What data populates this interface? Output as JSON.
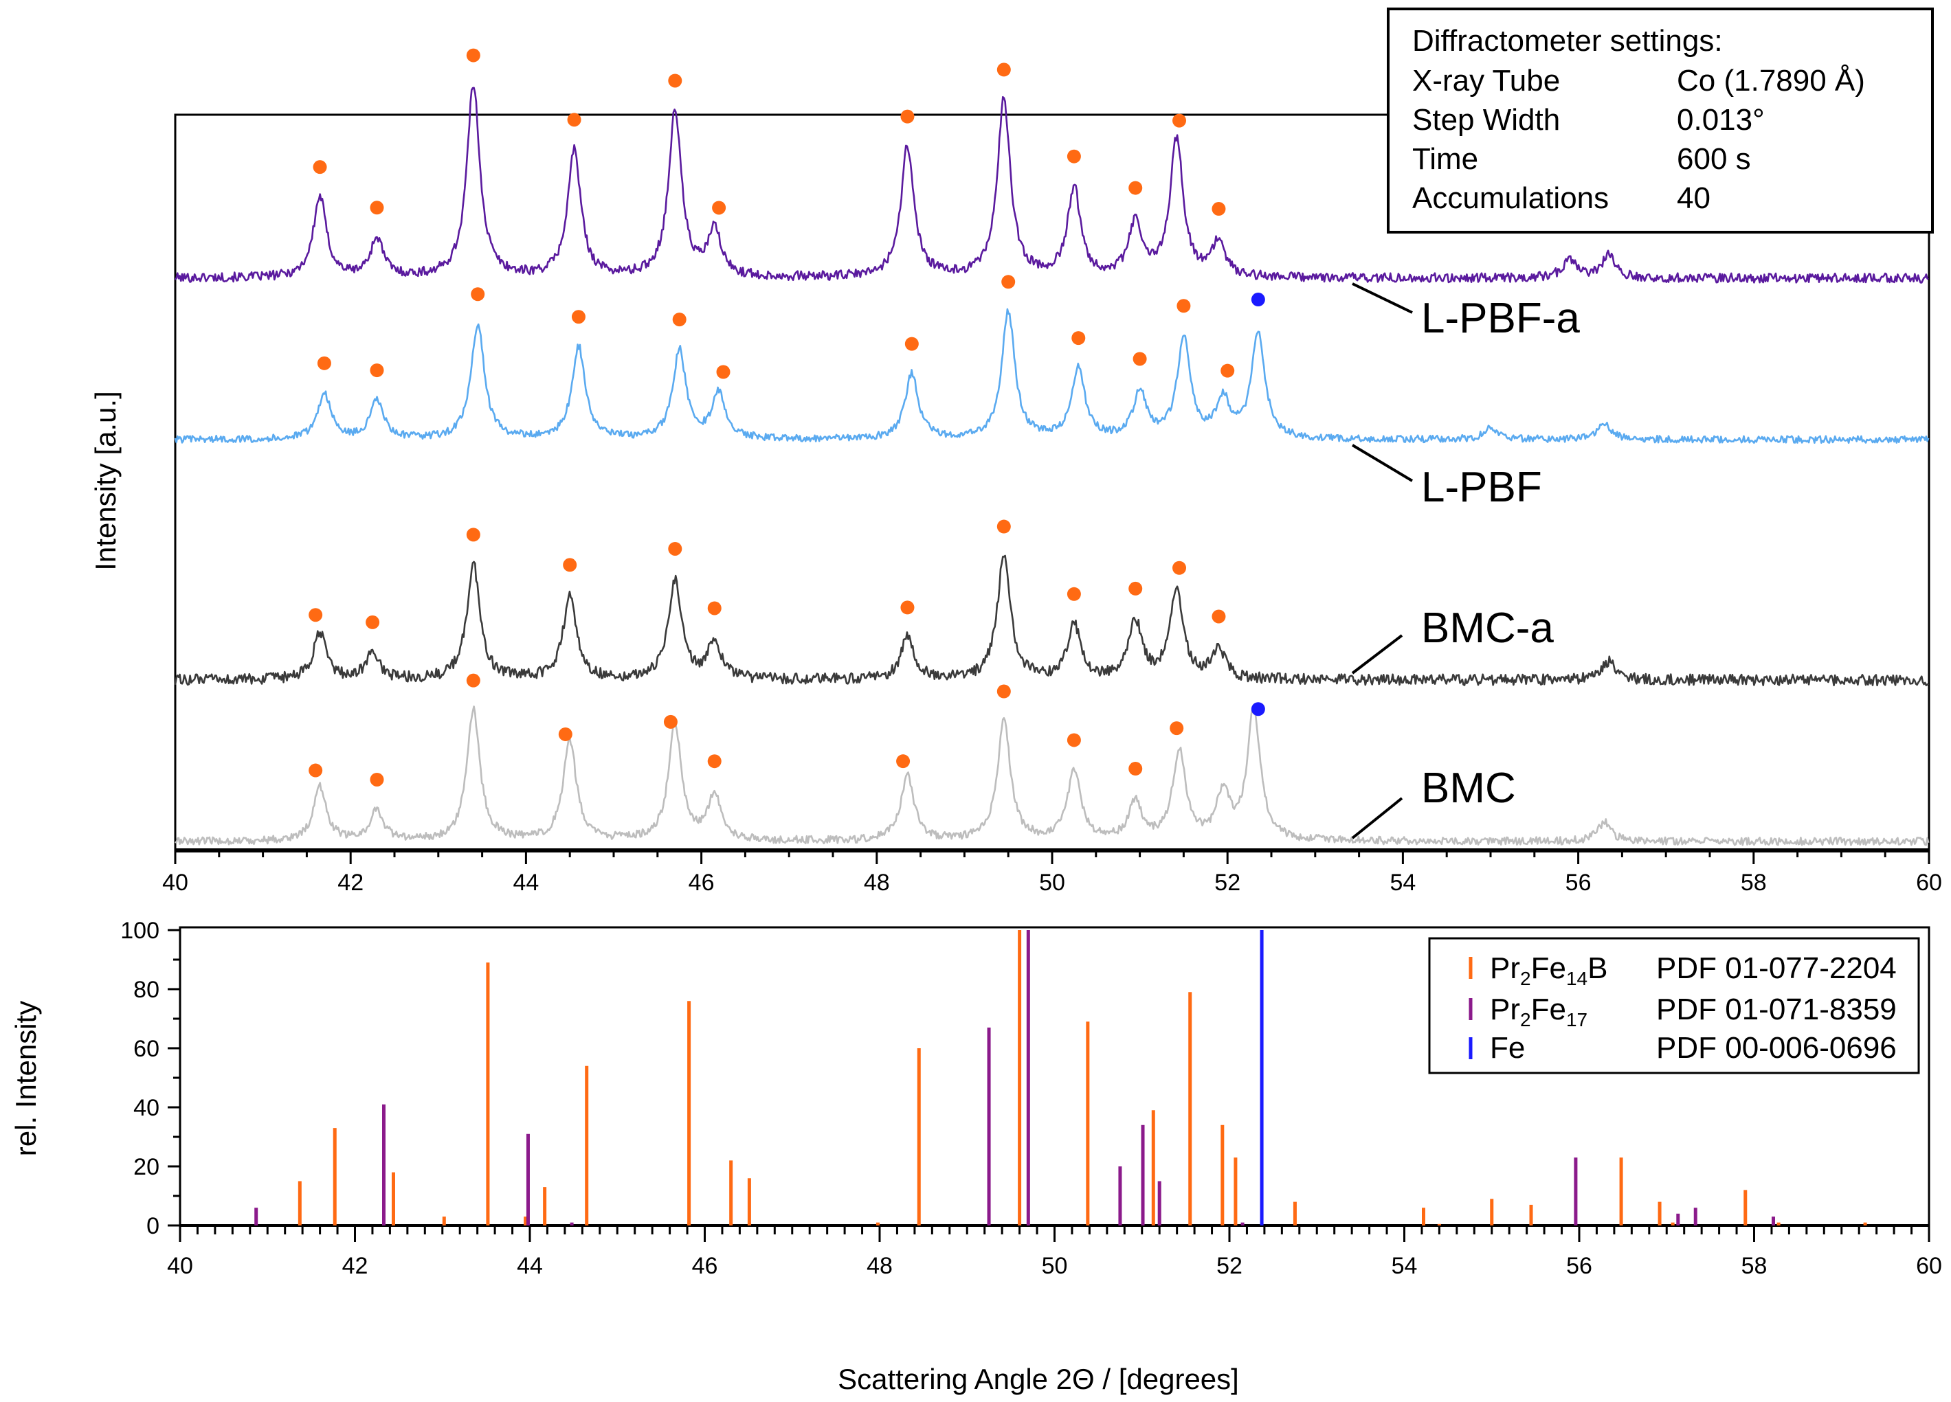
{
  "chart_data": [
    {
      "type": "line",
      "xlim": [
        40,
        60
      ],
      "x_ticks": [
        "40",
        "42",
        "44",
        "46",
        "48",
        "50",
        "52",
        "54",
        "56",
        "58",
        "60"
      ],
      "ylabel": "Intensity  [a.u.]",
      "y_ticks_shown": false,
      "grid": false,
      "peak_markers": [
        {
          "phase": "Pr2Fe14B",
          "color": "#ff6a13"
        },
        {
          "phase": "Fe",
          "color": "#1a1aff"
        }
      ],
      "series": [
        {
          "name": "L-PBF-a",
          "color": "#5a1a9e",
          "baseline": 0.04,
          "noise": 0.012,
          "peaks": [
            [
              41.65,
              0.21
            ],
            [
              42.3,
              0.1
            ],
            [
              43.4,
              0.5
            ],
            [
              44.55,
              0.33
            ],
            [
              45.7,
              0.43
            ],
            [
              46.15,
              0.12
            ],
            [
              48.35,
              0.34
            ],
            [
              49.45,
              0.46
            ],
            [
              50.25,
              0.23
            ],
            [
              50.95,
              0.14
            ],
            [
              51.42,
              0.36
            ],
            [
              51.9,
              0.09
            ],
            [
              55.9,
              0.05
            ],
            [
              56.35,
              0.06
            ]
          ],
          "markers": [
            [
              41.65,
              "Pr2Fe14B"
            ],
            [
              42.3,
              "Pr2Fe14B"
            ],
            [
              43.4,
              "Pr2Fe14B"
            ],
            [
              44.55,
              "Pr2Fe14B"
            ],
            [
              45.7,
              "Pr2Fe14B"
            ],
            [
              46.2,
              "Pr2Fe14B"
            ],
            [
              48.35,
              "Pr2Fe14B"
            ],
            [
              49.45,
              "Pr2Fe14B"
            ],
            [
              50.25,
              "Pr2Fe14B"
            ],
            [
              50.95,
              "Pr2Fe14B"
            ],
            [
              51.45,
              "Pr2Fe14B"
            ],
            [
              51.9,
              "Pr2Fe14B"
            ]
          ]
        },
        {
          "name": "L-PBF",
          "color": "#5aaaf0",
          "baseline": 0.04,
          "noise": 0.009,
          "peaks": [
            [
              41.7,
              0.12
            ],
            [
              42.3,
              0.1
            ],
            [
              43.45,
              0.3
            ],
            [
              44.6,
              0.24
            ],
            [
              45.75,
              0.23
            ],
            [
              46.2,
              0.12
            ],
            [
              48.4,
              0.17
            ],
            [
              49.5,
              0.33
            ],
            [
              50.3,
              0.18
            ],
            [
              51.0,
              0.12
            ],
            [
              51.5,
              0.26
            ],
            [
              51.95,
              0.1
            ],
            [
              52.35,
              0.28
            ],
            [
              55.0,
              0.03
            ],
            [
              56.3,
              0.04
            ]
          ],
          "markers": [
            [
              41.7,
              "Pr2Fe14B"
            ],
            [
              42.3,
              "Pr2Fe14B"
            ],
            [
              43.45,
              "Pr2Fe14B"
            ],
            [
              44.6,
              "Pr2Fe14B"
            ],
            [
              45.75,
              "Pr2Fe14B"
            ],
            [
              46.25,
              "Pr2Fe14B"
            ],
            [
              48.4,
              "Pr2Fe14B"
            ],
            [
              49.5,
              "Pr2Fe14B"
            ],
            [
              50.3,
              "Pr2Fe14B"
            ],
            [
              51.0,
              "Pr2Fe14B"
            ],
            [
              51.5,
              "Pr2Fe14B"
            ],
            [
              52.0,
              "Pr2Fe14B"
            ],
            [
              52.35,
              "Fe"
            ]
          ]
        },
        {
          "name": "BMC-a",
          "color": "#3a3a3a",
          "baseline": 0.04,
          "noise": 0.014,
          "peaks": [
            [
              41.65,
              0.12
            ],
            [
              42.25,
              0.07
            ],
            [
              43.4,
              0.3
            ],
            [
              44.5,
              0.22
            ],
            [
              45.7,
              0.26
            ],
            [
              46.15,
              0.1
            ],
            [
              48.35,
              0.11
            ],
            [
              49.45,
              0.32
            ],
            [
              50.25,
              0.14
            ],
            [
              50.95,
              0.15
            ],
            [
              51.42,
              0.23
            ],
            [
              51.9,
              0.08
            ],
            [
              56.35,
              0.05
            ]
          ],
          "markers": [
            [
              41.6,
              "Pr2Fe14B"
            ],
            [
              42.25,
              "Pr2Fe14B"
            ],
            [
              43.4,
              "Pr2Fe14B"
            ],
            [
              44.5,
              "Pr2Fe14B"
            ],
            [
              45.7,
              "Pr2Fe14B"
            ],
            [
              46.15,
              "Pr2Fe14B"
            ],
            [
              48.35,
              "Pr2Fe14B"
            ],
            [
              49.45,
              "Pr2Fe14B"
            ],
            [
              50.25,
              "Pr2Fe14B"
            ],
            [
              50.95,
              "Pr2Fe14B"
            ],
            [
              51.45,
              "Pr2Fe14B"
            ],
            [
              51.9,
              "Pr2Fe14B"
            ]
          ]
        },
        {
          "name": "BMC",
          "color": "#bdbdbd",
          "baseline": 0.04,
          "noise": 0.01,
          "peaks": [
            [
              41.65,
              0.14
            ],
            [
              42.3,
              0.08
            ],
            [
              43.4,
              0.34
            ],
            [
              44.5,
              0.26
            ],
            [
              45.7,
              0.3
            ],
            [
              46.15,
              0.12
            ],
            [
              48.35,
              0.17
            ],
            [
              49.45,
              0.31
            ],
            [
              50.25,
              0.18
            ],
            [
              50.95,
              0.1
            ],
            [
              51.45,
              0.23
            ],
            [
              51.95,
              0.12
            ],
            [
              52.3,
              0.34
            ],
            [
              56.3,
              0.05
            ]
          ],
          "markers": [
            [
              41.6,
              "Pr2Fe14B"
            ],
            [
              42.3,
              "Pr2Fe14B"
            ],
            [
              43.4,
              "Pr2Fe14B"
            ],
            [
              44.45,
              "Pr2Fe14B"
            ],
            [
              45.65,
              "Pr2Fe14B"
            ],
            [
              46.15,
              "Pr2Fe14B"
            ],
            [
              48.3,
              "Pr2Fe14B"
            ],
            [
              49.45,
              "Pr2Fe14B"
            ],
            [
              50.25,
              "Pr2Fe14B"
            ],
            [
              50.95,
              "Pr2Fe14B"
            ],
            [
              51.42,
              "Pr2Fe14B"
            ],
            [
              52.35,
              "Fe"
            ]
          ]
        }
      ],
      "settings_box": {
        "title": "Diffractometer settings:",
        "rows": [
          {
            "label": "X-ray Tube",
            "value": "Co (1.7890 Å)"
          },
          {
            "label": "Step Width",
            "value": "0.013°"
          },
          {
            "label": "Time",
            "value": "600 s"
          },
          {
            "label": "Accumulations",
            "value": "40"
          }
        ]
      }
    },
    {
      "type": "bar",
      "subtype": "stick-pattern",
      "xlim": [
        40,
        60
      ],
      "ylim": [
        0,
        100
      ],
      "x_ticks": [
        "40",
        "42",
        "44",
        "46",
        "48",
        "50",
        "52",
        "54",
        "56",
        "58",
        "60"
      ],
      "y_ticks": [
        "0",
        "20",
        "40",
        "60",
        "80",
        "100"
      ],
      "xlabel": "Scattering Angle 2Θ / [degrees]",
      "ylabel": "rel. Intensity",
      "legend_position": "top-right",
      "series": [
        {
          "name_base": "Pr",
          "name_sub1": "2",
          "name_mid": "Fe",
          "name_sub2": "14",
          "name_end": "B",
          "ref": "PDF 01-077-2204",
          "color": "#ff6a13",
          "sticks": [
            [
              41.37,
              15
            ],
            [
              41.77,
              33
            ],
            [
              42.44,
              18
            ],
            [
              43.02,
              3
            ],
            [
              43.52,
              89
            ],
            [
              43.95,
              3
            ],
            [
              44.17,
              13
            ],
            [
              44.65,
              54
            ],
            [
              45.82,
              76
            ],
            [
              46.3,
              22
            ],
            [
              46.51,
              16
            ],
            [
              47.98,
              1
            ],
            [
              48.45,
              60
            ],
            [
              49.6,
              100
            ],
            [
              50.38,
              69
            ],
            [
              51.13,
              39
            ],
            [
              51.55,
              79
            ],
            [
              51.92,
              34
            ],
            [
              52.07,
              23
            ],
            [
              52.75,
              8
            ],
            [
              54.22,
              6
            ],
            [
              54.4,
              0.5
            ],
            [
              55.0,
              9
            ],
            [
              55.45,
              7
            ],
            [
              56.48,
              23
            ],
            [
              56.92,
              8
            ],
            [
              57.07,
              1
            ],
            [
              57.9,
              12
            ],
            [
              58.28,
              1
            ],
            [
              59.27,
              1
            ]
          ]
        },
        {
          "name_base": "Pr",
          "name_sub1": "2",
          "name_mid": "Fe",
          "name_sub2": "17",
          "name_end": "",
          "ref": "PDF 01-071-8359",
          "color": "#8b1a8b",
          "sticks": [
            [
              40.87,
              6
            ],
            [
              42.33,
              41
            ],
            [
              43.98,
              31
            ],
            [
              44.48,
              1
            ],
            [
              49.25,
              67
            ],
            [
              49.7,
              100
            ],
            [
              50.75,
              20
            ],
            [
              51.01,
              34
            ],
            [
              51.2,
              15
            ],
            [
              52.15,
              1
            ],
            [
              55.96,
              23
            ],
            [
              57.13,
              4
            ],
            [
              57.33,
              6
            ],
            [
              58.22,
              3
            ]
          ]
        },
        {
          "name_base": "Fe",
          "name_sub1": "",
          "name_mid": "",
          "name_sub2": "",
          "name_end": "",
          "ref": "PDF 00-006-0696",
          "color": "#1a1aff",
          "sticks": [
            [
              52.37,
              100
            ]
          ]
        }
      ]
    }
  ]
}
